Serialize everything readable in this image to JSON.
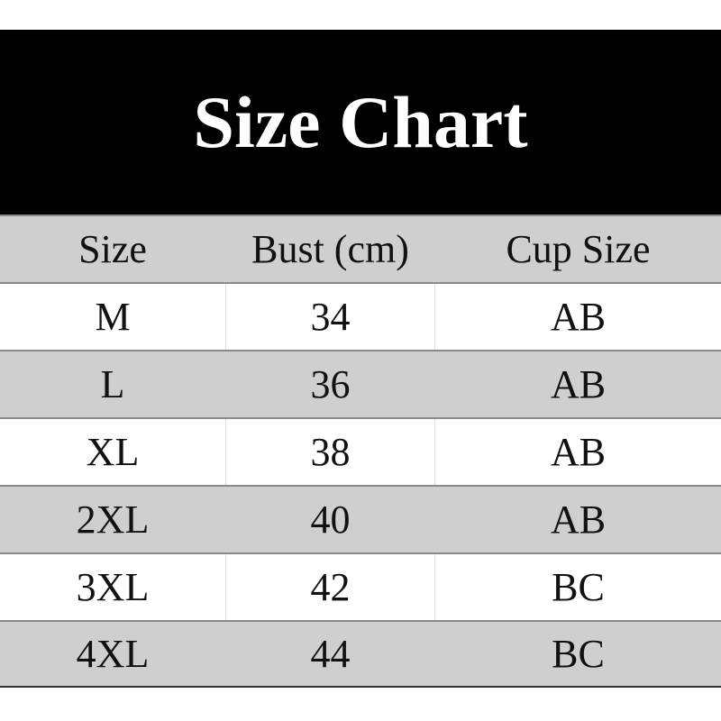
{
  "title": "Size Chart",
  "table": {
    "headers": [
      "Size",
      "Bust (cm)",
      "Cup Size"
    ],
    "rows": [
      [
        "M",
        "34",
        "AB"
      ],
      [
        "L",
        "36",
        "AB"
      ],
      [
        "XL",
        "38",
        "AB"
      ],
      [
        "2XL",
        "40",
        "AB"
      ],
      [
        "3XL",
        "42",
        "BC"
      ],
      [
        "4XL",
        "44",
        "BC"
      ]
    ]
  },
  "colors": {
    "banner": "#000000",
    "stripe": "#cfcfcf",
    "title_text": "#ffffff"
  }
}
